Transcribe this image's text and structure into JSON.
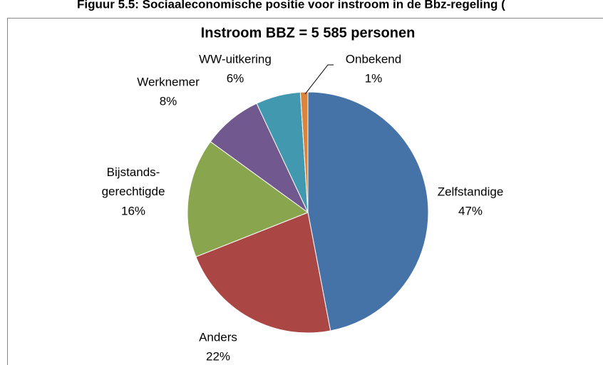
{
  "caption": "Figuur 5.5: Sociaaleconomische positie voor instroom in de Bbz-regeling (",
  "chart_data": {
    "type": "pie",
    "title": "Instroom BBZ = 5 585 personen",
    "categories": [
      "Zelfstandige",
      "Anders",
      "Bijstands-gerechtigde",
      "Werknemer",
      "WW-uitkering",
      "Onbekend"
    ],
    "values": [
      47,
      22,
      16,
      8,
      6,
      1
    ],
    "value_labels": [
      "47%",
      "22%",
      "16%",
      "8%",
      "6%",
      "1%"
    ],
    "colors": [
      "#4572a7",
      "#aa4643",
      "#89a54e",
      "#71588f",
      "#4198af",
      "#db843d"
    ]
  }
}
